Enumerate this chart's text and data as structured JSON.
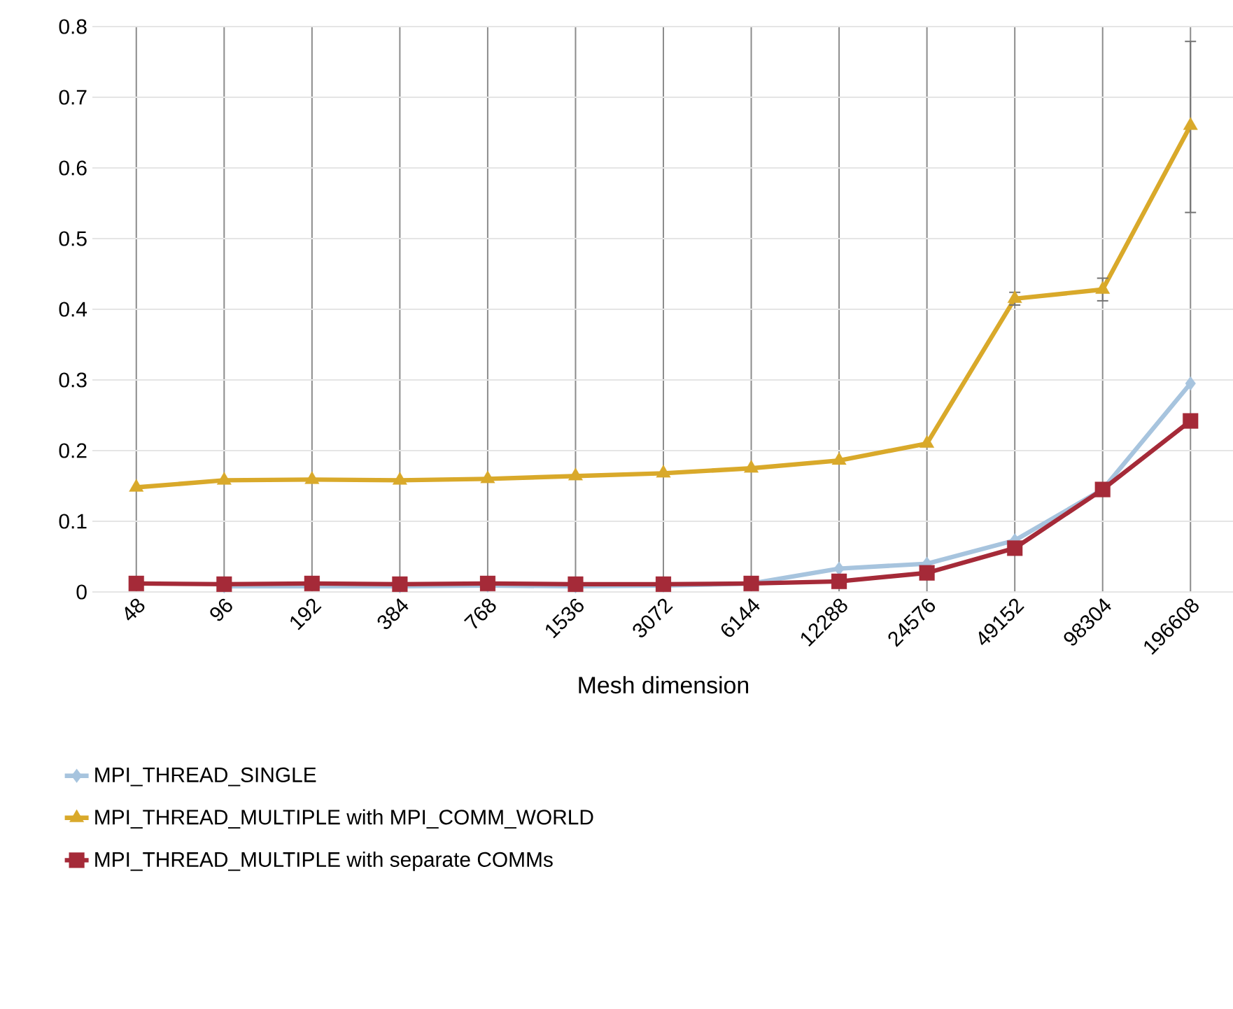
{
  "chart_data": {
    "type": "line",
    "xlabel": "Mesh dimension",
    "categories": [
      "48",
      "96",
      "192",
      "384",
      "768",
      "1536",
      "3072",
      "6144",
      "12288",
      "24576",
      "49152",
      "98304",
      "196608"
    ],
    "series": [
      {
        "name": "MPI_THREAD_SINGLE",
        "color": "#a7c4de",
        "marker": "diamond",
        "values": [
          null,
          0.008,
          null,
          0.008,
          0.009,
          0.008,
          0.009,
          0.012,
          0.033,
          0.04,
          0.073,
          0.145,
          0.295
        ]
      },
      {
        "name": "MPI_THREAD_MULTIPLE with MPI_COMM_WORLD",
        "color": "#d9a92a",
        "marker": "triangle",
        "values": [
          0.148,
          0.158,
          0.159,
          0.158,
          0.16,
          0.164,
          0.168,
          0.175,
          0.186,
          0.21,
          0.415,
          0.428,
          0.66
        ],
        "errors": [
          null,
          null,
          null,
          null,
          null,
          null,
          null,
          null,
          null,
          null,
          [
            0.406,
            0.424
          ],
          [
            0.412,
            0.444
          ],
          [
            0.537,
            0.779
          ]
        ]
      },
      {
        "name": "MPI_THREAD_MULTIPLE with separate COMMs",
        "color": "#a52a38",
        "marker": "square",
        "values": [
          0.012,
          0.011,
          0.012,
          0.011,
          0.012,
          0.011,
          0.011,
          0.012,
          0.015,
          0.027,
          0.062,
          0.145,
          0.242
        ]
      }
    ],
    "ylim": [
      0,
      0.8
    ],
    "yticks": [
      0,
      0.1,
      0.2,
      0.3,
      0.4,
      0.5,
      0.6,
      0.7,
      0.8
    ],
    "grid": true,
    "legend": "bottom left"
  }
}
